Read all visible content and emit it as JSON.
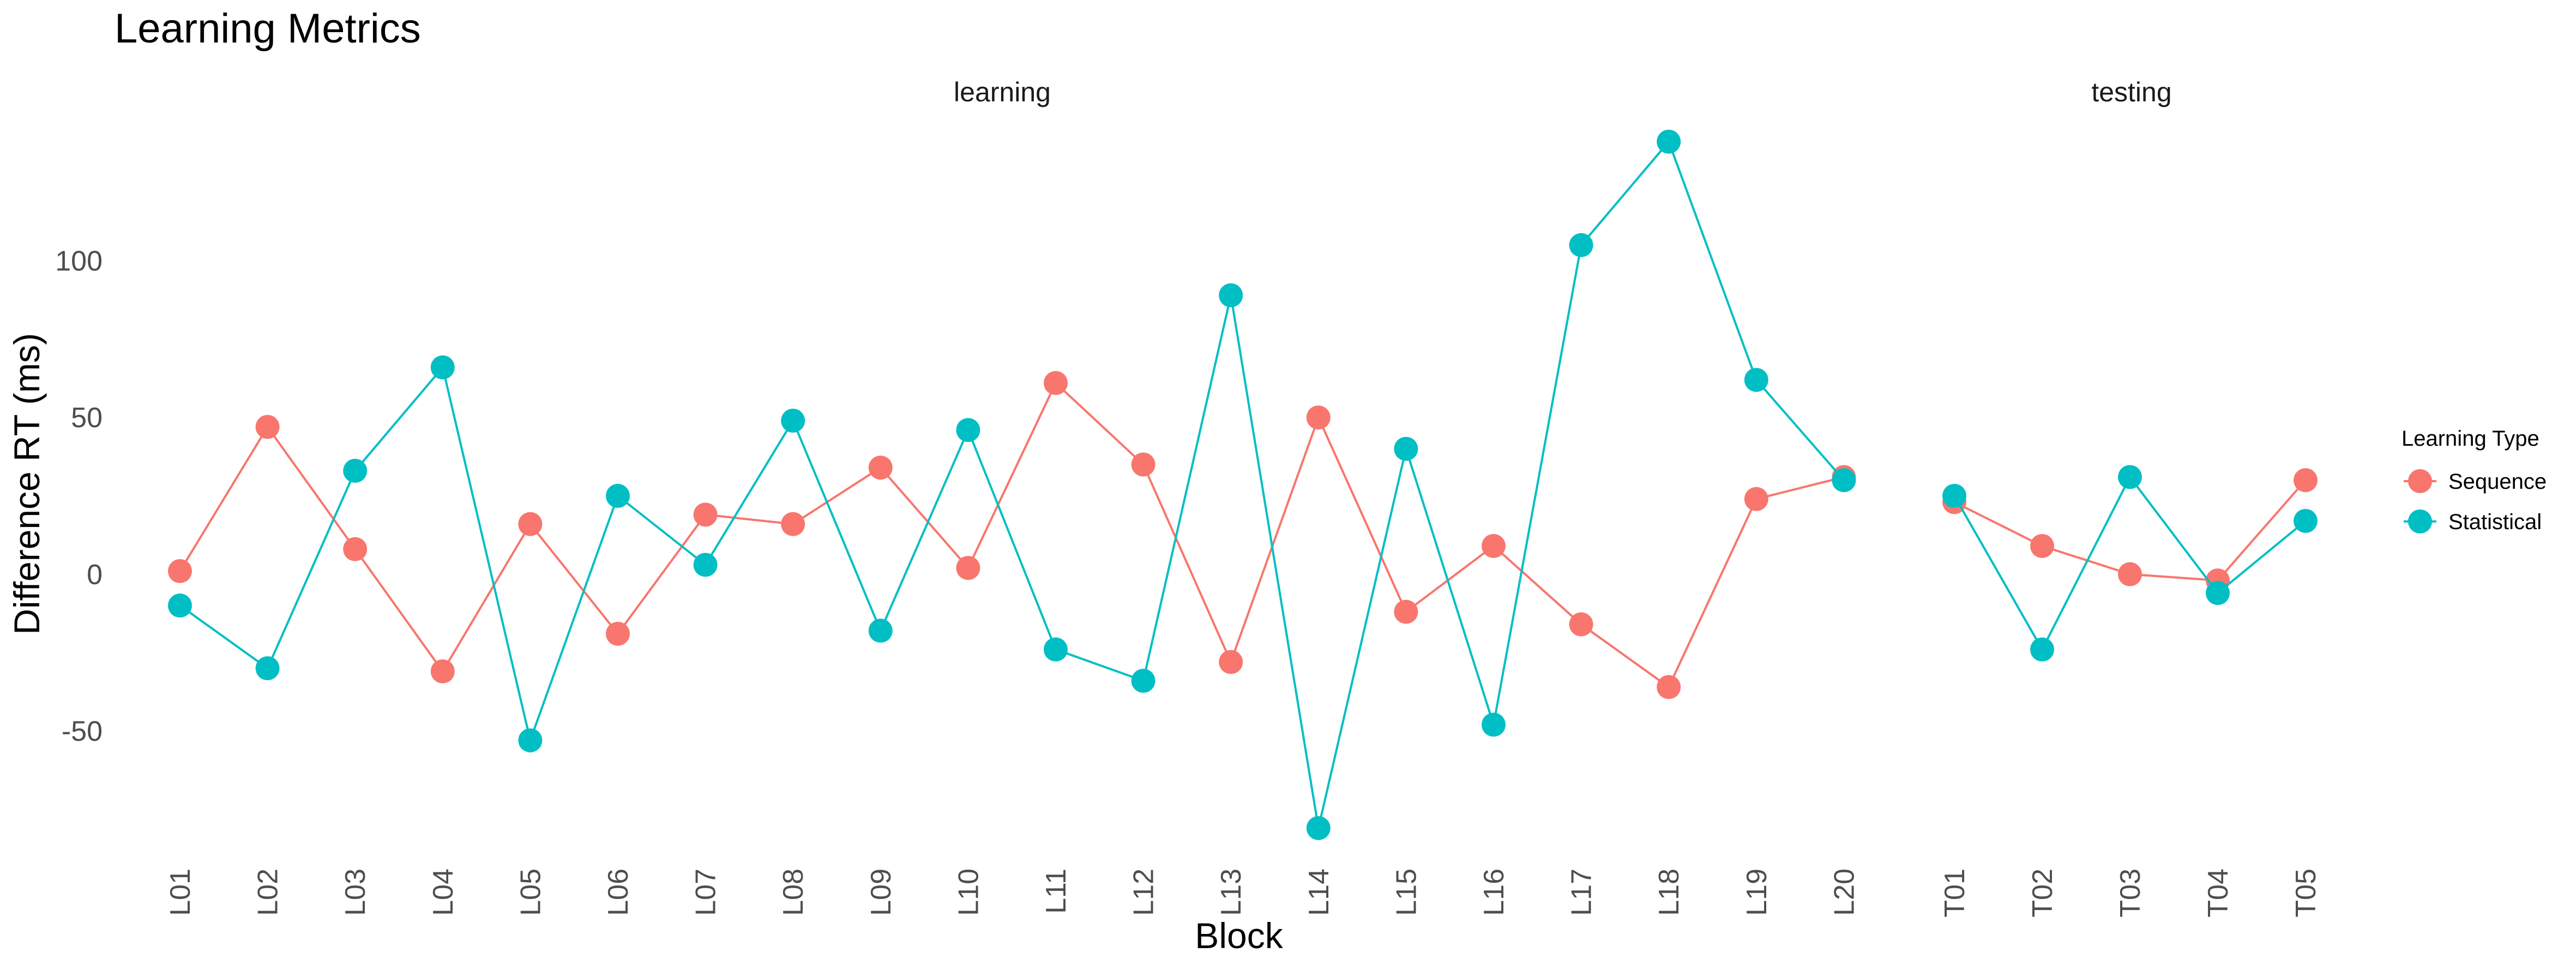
{
  "chart_data": {
    "type": "line",
    "title": "Learning Metrics",
    "xlabel": "Block",
    "ylabel": "Difference RT (ms)",
    "ylim": [
      -88,
      146
    ],
    "yticks": [
      -50,
      0,
      50,
      100
    ],
    "grid": false,
    "legend": {
      "title": "Learning Type",
      "position": "right",
      "entries": [
        "Sequence",
        "Statistical"
      ]
    },
    "colors": {
      "Sequence": "#F8766D",
      "Statistical": "#00BFC4"
    },
    "facets": [
      {
        "name": "learning",
        "categories": [
          "L01",
          "L02",
          "L03",
          "L04",
          "L05",
          "L06",
          "L07",
          "L08",
          "L09",
          "L10",
          "L11",
          "L12",
          "L13",
          "L14",
          "L15",
          "L16",
          "L17",
          "L18",
          "L19",
          "L20"
        ],
        "series": [
          {
            "name": "Sequence",
            "values": [
              1,
              47,
              8,
              -31,
              16,
              -19,
              19,
              16,
              34,
              2,
              61,
              35,
              -28,
              50,
              -12,
              9,
              -16,
              -36,
              24,
              31
            ]
          },
          {
            "name": "Statistical",
            "values": [
              -10,
              -30,
              33,
              66,
              -53,
              25,
              3,
              49,
              -18,
              46,
              -24,
              -34,
              89,
              -81,
              40,
              -48,
              105,
              138,
              62,
              30
            ]
          }
        ]
      },
      {
        "name": "testing",
        "categories": [
          "T01",
          "T02",
          "T03",
          "T04",
          "T05"
        ],
        "series": [
          {
            "name": "Sequence",
            "values": [
              23,
              9,
              0,
              -2,
              30
            ]
          },
          {
            "name": "Statistical",
            "values": [
              25,
              -24,
              31,
              -6,
              17
            ]
          }
        ]
      }
    ]
  }
}
